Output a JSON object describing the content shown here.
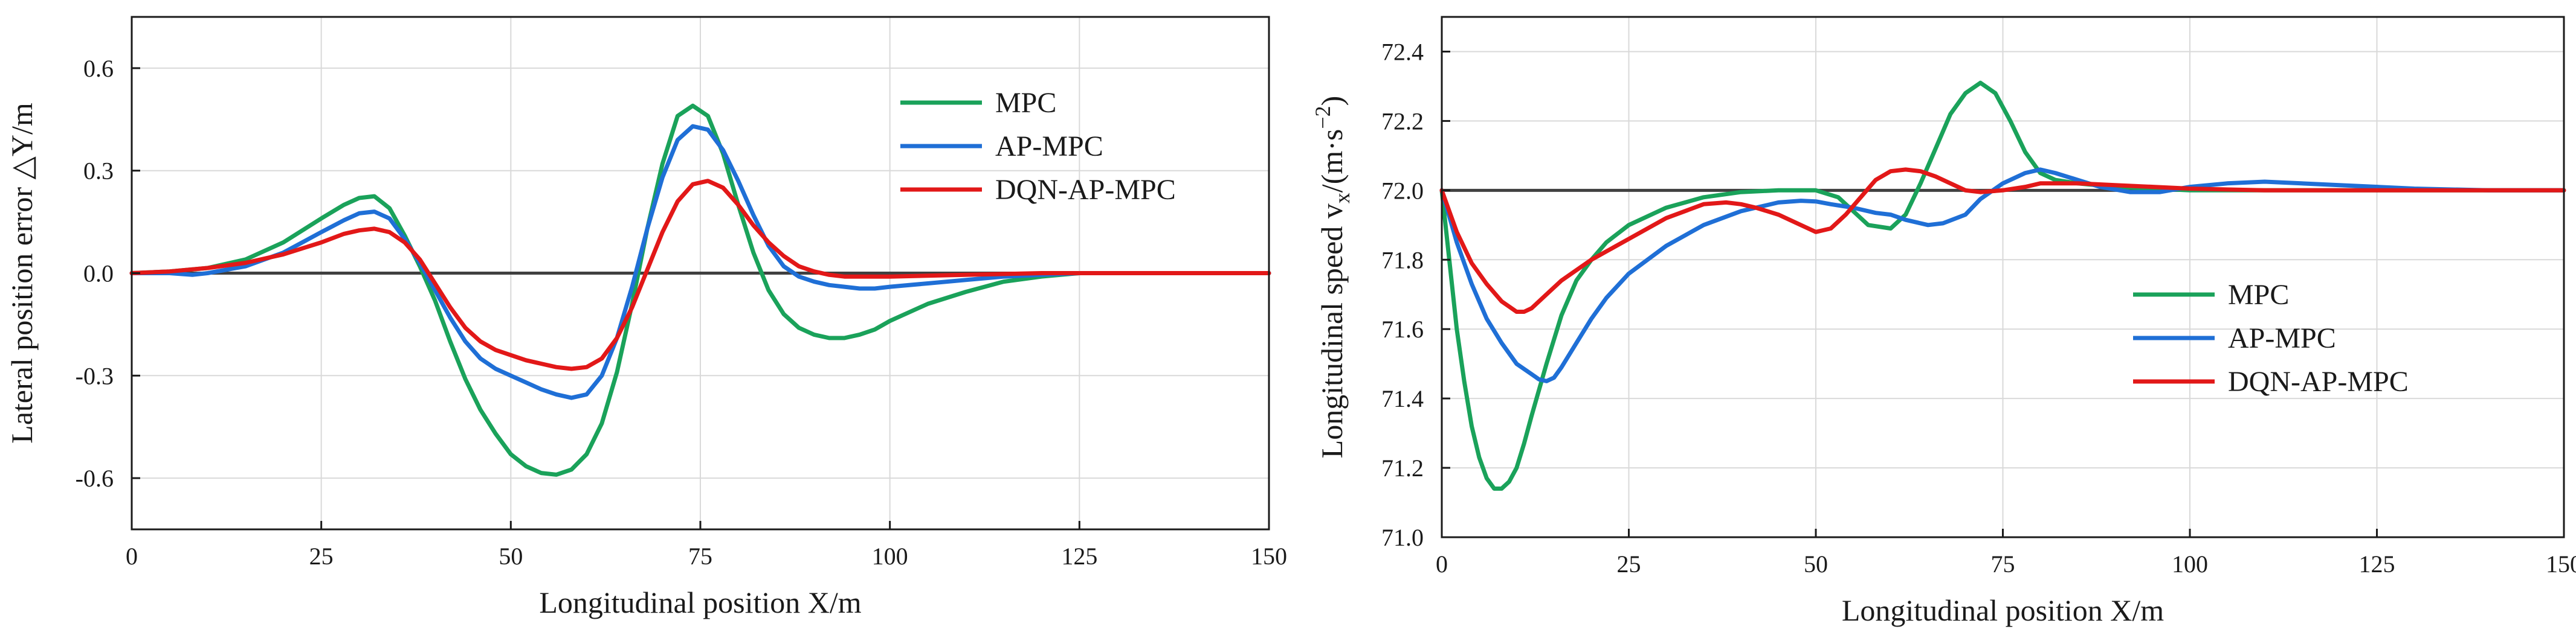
{
  "chart_data": [
    {
      "type": "line",
      "xlabel": "Longitudinal position X/m",
      "ylabel": "Lateral position error △Y/m",
      "xlim": [
        0,
        150
      ],
      "ylim": [
        -0.75,
        0.75
      ],
      "xticks": [
        0,
        25,
        50,
        75,
        100,
        125,
        150
      ],
      "xtick_labels": [
        "0",
        "25",
        "50",
        "75",
        "100",
        "125",
        "150"
      ],
      "yticks": [
        -0.6,
        -0.3,
        0.0,
        0.3,
        0.6
      ],
      "ytick_labels": [
        "-0.6",
        "-0.3",
        "0.0",
        "0.3",
        "0.6"
      ],
      "grid": true,
      "legend_position": "top-right",
      "reference": {
        "name": "reference",
        "value": 0.0,
        "color": "#404040"
      },
      "series": [
        {
          "name": "MPC",
          "color": "#1aa25a",
          "x": [
            0,
            5,
            10,
            15,
            20,
            25,
            28,
            30,
            32,
            34,
            36,
            38,
            40,
            42,
            44,
            46,
            48,
            50,
            52,
            54,
            56,
            58,
            60,
            62,
            64,
            66,
            68,
            70,
            72,
            74,
            76,
            78,
            80,
            82,
            84,
            86,
            88,
            90,
            92,
            94,
            96,
            98,
            100,
            105,
            110,
            115,
            120,
            125,
            130,
            140,
            150
          ],
          "y": [
            0,
            0.005,
            0.015,
            0.04,
            0.09,
            0.16,
            0.2,
            0.22,
            0.225,
            0.19,
            0.11,
            0.02,
            -0.08,
            -0.2,
            -0.31,
            -0.4,
            -0.47,
            -0.53,
            -0.565,
            -0.585,
            -0.59,
            -0.575,
            -0.53,
            -0.44,
            -0.29,
            -0.09,
            0.13,
            0.32,
            0.46,
            0.49,
            0.46,
            0.35,
            0.2,
            0.06,
            -0.05,
            -0.12,
            -0.16,
            -0.18,
            -0.19,
            -0.19,
            -0.18,
            -0.165,
            -0.14,
            -0.09,
            -0.055,
            -0.025,
            -0.01,
            0.0,
            0.0,
            0.0,
            0.0
          ]
        },
        {
          "name": "AP-MPC",
          "color": "#1f6fd6",
          "x": [
            0,
            5,
            8,
            10,
            15,
            20,
            25,
            28,
            30,
            32,
            34,
            36,
            38,
            40,
            42,
            44,
            46,
            48,
            50,
            52,
            54,
            56,
            58,
            60,
            62,
            64,
            66,
            68,
            70,
            72,
            74,
            76,
            78,
            80,
            82,
            84,
            86,
            88,
            90,
            92,
            94,
            96,
            98,
            100,
            105,
            110,
            115,
            120,
            125,
            130,
            140,
            150
          ],
          "y": [
            0,
            0.0,
            -0.005,
            0.0,
            0.02,
            0.06,
            0.12,
            0.155,
            0.175,
            0.18,
            0.16,
            0.1,
            0.03,
            -0.05,
            -0.13,
            -0.2,
            -0.25,
            -0.28,
            -0.3,
            -0.32,
            -0.34,
            -0.355,
            -0.365,
            -0.355,
            -0.3,
            -0.19,
            -0.04,
            0.13,
            0.28,
            0.39,
            0.43,
            0.42,
            0.36,
            0.27,
            0.17,
            0.08,
            0.02,
            -0.01,
            -0.025,
            -0.035,
            -0.04,
            -0.045,
            -0.045,
            -0.04,
            -0.03,
            -0.02,
            -0.01,
            -0.005,
            0.0,
            0.0,
            0.0,
            0.0
          ]
        },
        {
          "name": "DQN-AP-MPC",
          "color": "#e21818",
          "x": [
            0,
            5,
            10,
            15,
            20,
            25,
            28,
            30,
            32,
            34,
            36,
            38,
            40,
            42,
            44,
            46,
            48,
            50,
            52,
            54,
            56,
            58,
            60,
            62,
            64,
            66,
            68,
            70,
            72,
            74,
            76,
            78,
            80,
            82,
            84,
            86,
            88,
            90,
            92,
            94,
            96,
            100,
            110,
            120,
            130,
            140,
            150
          ],
          "y": [
            0,
            0.005,
            0.015,
            0.03,
            0.055,
            0.09,
            0.115,
            0.125,
            0.13,
            0.12,
            0.09,
            0.04,
            -0.03,
            -0.1,
            -0.16,
            -0.2,
            -0.225,
            -0.24,
            -0.255,
            -0.265,
            -0.275,
            -0.28,
            -0.275,
            -0.25,
            -0.19,
            -0.1,
            0.01,
            0.12,
            0.21,
            0.26,
            0.27,
            0.25,
            0.2,
            0.14,
            0.09,
            0.05,
            0.02,
            0.005,
            -0.005,
            -0.01,
            -0.01,
            -0.01,
            -0.005,
            0.0,
            0.0,
            0.0,
            0.0
          ]
        }
      ]
    },
    {
      "type": "line",
      "xlabel": "Longitudinal position X/m",
      "ylabel_parts": [
        "Longitudinal speed v",
        "x",
        "/(m·s",
        "−2",
        ")"
      ],
      "xlim": [
        0,
        150
      ],
      "ylim": [
        71.0,
        72.5
      ],
      "xticks": [
        0,
        25,
        50,
        75,
        100,
        125,
        150
      ],
      "xtick_labels": [
        "0",
        "25",
        "50",
        "75",
        "100",
        "125",
        "150"
      ],
      "yticks": [
        71.0,
        71.2,
        71.4,
        71.6,
        71.8,
        72.0,
        72.2,
        72.4
      ],
      "ytick_labels": [
        "71.0",
        "71.2",
        "71.4",
        "71.6",
        "71.8",
        "72.0",
        "72.2",
        "72.4"
      ],
      "grid": true,
      "legend_position": "center-right",
      "reference": {
        "name": "reference",
        "value": 72.0,
        "color": "#404040"
      },
      "series": [
        {
          "name": "MPC",
          "color": "#1aa25a",
          "x": [
            0,
            1,
            2,
            3,
            4,
            5,
            6,
            7,
            8,
            9,
            10,
            11,
            12,
            14,
            16,
            18,
            20,
            22,
            25,
            30,
            35,
            40,
            45,
            50,
            53,
            55,
            57,
            60,
            62,
            64,
            66,
            68,
            70,
            72,
            74,
            76,
            78,
            80,
            82,
            85,
            90,
            100,
            110,
            120,
            130,
            140,
            150
          ],
          "y": [
            72.0,
            71.8,
            71.6,
            71.45,
            71.32,
            71.23,
            71.17,
            71.14,
            71.14,
            71.16,
            71.2,
            71.27,
            71.35,
            71.5,
            71.64,
            71.74,
            71.8,
            71.85,
            71.9,
            71.95,
            71.98,
            71.995,
            72.0,
            72.0,
            71.98,
            71.94,
            71.9,
            71.89,
            71.93,
            72.02,
            72.12,
            72.22,
            72.28,
            72.31,
            72.28,
            72.2,
            72.11,
            72.05,
            72.03,
            72.02,
            72.01,
            72.0,
            72.0,
            72.0,
            72.0,
            72.0,
            72.0
          ]
        },
        {
          "name": "AP-MPC",
          "color": "#1f6fd6",
          "x": [
            0,
            2,
            4,
            6,
            8,
            10,
            12,
            13,
            14,
            15,
            16,
            18,
            20,
            22,
            25,
            30,
            35,
            40,
            45,
            48,
            50,
            52,
            55,
            58,
            60,
            62,
            65,
            67,
            70,
            72,
            75,
            78,
            80,
            82,
            85,
            88,
            92,
            96,
            100,
            105,
            110,
            120,
            130,
            140,
            150
          ],
          "y": [
            72.0,
            71.85,
            71.73,
            71.63,
            71.56,
            71.5,
            71.47,
            71.455,
            71.45,
            71.46,
            71.49,
            71.56,
            71.63,
            71.69,
            71.76,
            71.84,
            71.9,
            71.94,
            71.965,
            71.97,
            71.968,
            71.96,
            71.95,
            71.935,
            71.93,
            71.915,
            71.9,
            71.905,
            71.93,
            71.975,
            72.02,
            72.05,
            72.06,
            72.05,
            72.03,
            72.01,
            71.995,
            71.995,
            72.01,
            72.02,
            72.025,
            72.015,
            72.005,
            72.0,
            72.0
          ]
        },
        {
          "name": "DQN-AP-MPC",
          "color": "#e21818",
          "x": [
            0,
            2,
            4,
            6,
            8,
            10,
            11,
            12,
            14,
            16,
            18,
            20,
            25,
            30,
            35,
            38,
            40,
            42,
            45,
            48,
            50,
            52,
            54,
            56,
            58,
            60,
            62,
            64,
            66,
            68,
            70,
            72,
            75,
            78,
            80,
            85,
            90,
            100,
            110,
            120,
            130,
            150
          ],
          "y": [
            72.0,
            71.88,
            71.79,
            71.73,
            71.68,
            71.65,
            71.65,
            71.66,
            71.7,
            71.74,
            71.77,
            71.8,
            71.86,
            71.92,
            71.96,
            71.965,
            71.96,
            71.95,
            71.93,
            71.9,
            71.88,
            71.89,
            71.93,
            71.98,
            72.03,
            72.055,
            72.06,
            72.055,
            72.04,
            72.02,
            72.0,
            71.995,
            72.0,
            72.01,
            72.02,
            72.02,
            72.015,
            72.005,
            72.0,
            72.0,
            72.0,
            72.0
          ]
        }
      ]
    }
  ]
}
